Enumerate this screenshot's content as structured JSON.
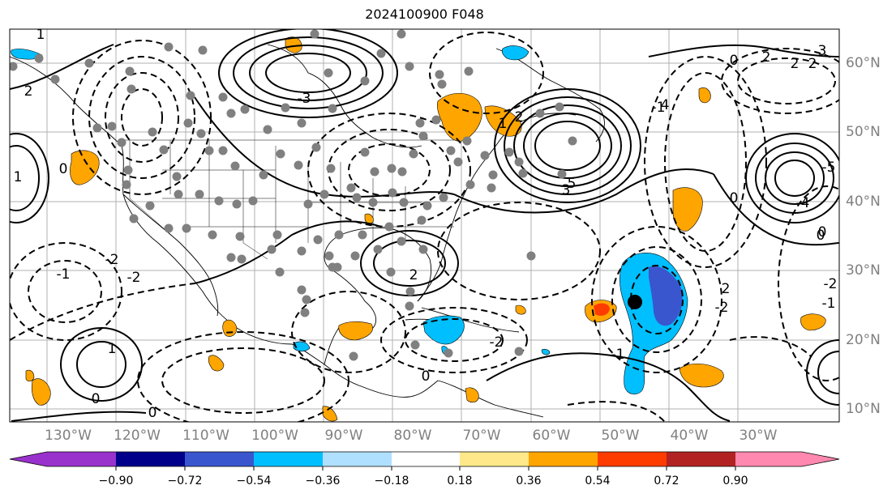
{
  "title": "2024100900 F048",
  "lon_labels": [
    "130°W",
    "120°W",
    "110°W",
    "100°W",
    "90°W",
    "80°W",
    "70°W",
    "60°W",
    "50°W",
    "40°W",
    "30°W"
  ],
  "lat_labels": [
    "60°N",
    "50°N",
    "40°N",
    "30°N",
    "20°N",
    "10°N"
  ],
  "colorbar": {
    "ticks": [
      "−0.90",
      "−0.72",
      "−0.54",
      "−0.36",
      "−0.18",
      "0.18",
      "0.36",
      "0.54",
      "0.72",
      "0.90"
    ],
    "colors": [
      "#9932cc",
      "#00008b",
      "#3a56cf",
      "#00bfff",
      "#b0e0ff",
      "#ffffff",
      "#ffe88a",
      "#ffa500",
      "#ff3c00",
      "#b22222",
      "#ff88b0"
    ]
  },
  "colors": {
    "positive_fill": "#ffa500",
    "strong_positive_fill": "#ff3c00",
    "negative_fill": "#00bfff",
    "strong_negative_fill": "#3a56cf",
    "station_dot": "#808080",
    "marker": "#000000"
  },
  "contour_labels": [
    "1",
    "2",
    "3",
    "4",
    "5",
    "0",
    "0",
    "1",
    "2",
    "2",
    "3",
    "2",
    "0",
    "-1",
    "-2",
    "-2",
    "0",
    "-2",
    "1",
    "0",
    "1",
    "-1",
    "-2",
    "-3",
    "2",
    "0",
    "-1",
    "0",
    "2",
    "-1",
    "2",
    "-2",
    "-4",
    "-5",
    "0"
  ]
}
